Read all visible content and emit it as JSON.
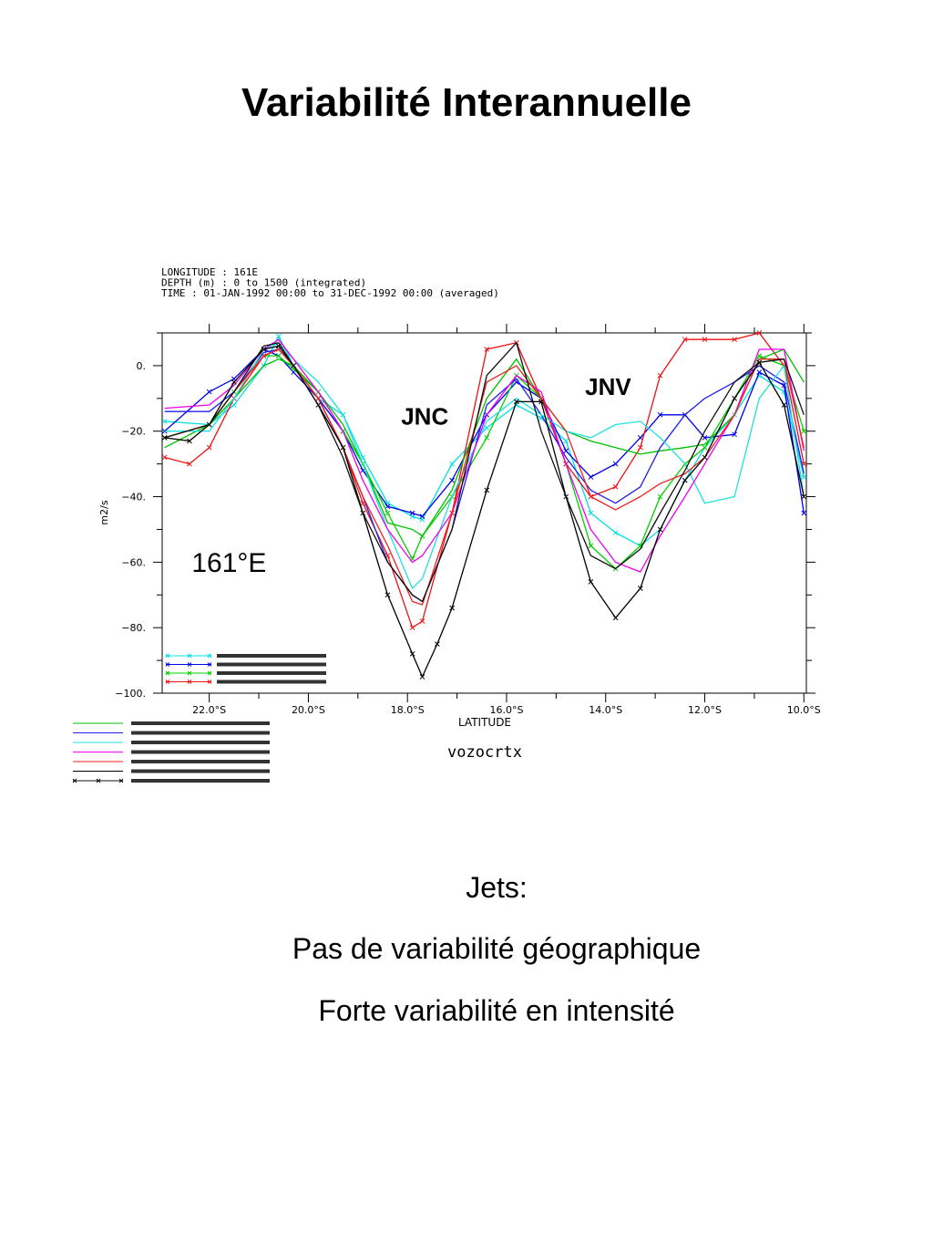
{
  "slide": {
    "title": "Variabilité Interannuelle",
    "caption_lines": [
      "Jets:",
      "Pas de variabilité géographique",
      "Forte variabilité en intensité"
    ]
  },
  "chart_data": {
    "type": "line",
    "header_lines": [
      "LONGITUDE : 161E",
      "DEPTH (m) : 0 to 1500 (integrated)",
      "TIME : 01-JAN-1992 00:00 to 31-DEC-1992 00:00 (averaged)"
    ],
    "xlabel": "LATITUDE",
    "ylabel": "m2/s",
    "variable": "vozocrtx",
    "x_reversed_scale": true,
    "xlim": [
      22.95,
      9.95
    ],
    "ylim": [
      -100,
      10
    ],
    "xticks": [
      22,
      20,
      18,
      16,
      14,
      12,
      10
    ],
    "xtick_labels": [
      "22.0°S",
      "20.0°S",
      "18.0°S",
      "16.0°S",
      "14.0°S",
      "12.0°S",
      "10.0°S"
    ],
    "yticks": [
      0,
      -20,
      -40,
      -60,
      -80,
      -100
    ],
    "ytick_labels": [
      "0.",
      "−20.",
      "−40.",
      "−60.",
      "−80.",
      "−100."
    ],
    "grid": false,
    "annotations": [
      {
        "text": "JNC",
        "x": 17.65,
        "y": -18
      },
      {
        "text": "JNV",
        "x": 13.95,
        "y": -9
      },
      {
        "text": "161°E",
        "x": 21.6,
        "y": -63
      }
    ],
    "legend_placement": "lower-left",
    "series": [
      {
        "color": "#00e0e0",
        "marker": "x",
        "x": [
          22.9,
          22.0,
          21.5,
          20.9,
          20.6,
          20.3,
          19.8,
          19.3,
          18.9,
          18.4,
          17.9,
          17.7,
          17.1,
          16.4,
          15.8,
          15.3,
          14.8,
          14.3,
          13.8,
          13.3,
          12.9,
          12.4,
          12.0,
          11.4,
          10.9,
          10.4,
          10.0
        ],
        "y": [
          -17,
          -18,
          -12,
          0,
          9,
          0,
          -10,
          -15,
          -28,
          -42,
          -46,
          -47,
          -30,
          -19,
          -12,
          -16,
          -23,
          -45,
          -51,
          -55,
          -50,
          -35,
          -25,
          -15,
          -3,
          -8,
          -34
        ]
      },
      {
        "color": "#0000ee",
        "marker": "x",
        "x": [
          22.9,
          22.0,
          21.5,
          20.9,
          20.6,
          20.3,
          19.8,
          19.3,
          18.9,
          18.4,
          17.9,
          17.7,
          17.1,
          16.4,
          15.8,
          15.3,
          14.8,
          14.3,
          13.8,
          13.3,
          12.9,
          12.4,
          12.0,
          11.4,
          10.9,
          10.4,
          10.0
        ],
        "y": [
          -20,
          -8,
          -4,
          5,
          3,
          -2,
          -10,
          -20,
          -32,
          -43,
          -45,
          -46,
          -35,
          -15,
          -5,
          -10,
          -26,
          -34,
          -30,
          -22,
          -15,
          -15,
          -22,
          -21,
          -2,
          -6,
          -45
        ]
      },
      {
        "color": "#00d000",
        "marker": "x",
        "x": [
          22.9,
          22.0,
          21.5,
          20.9,
          20.6,
          20.3,
          19.8,
          19.3,
          18.9,
          18.4,
          17.9,
          17.7,
          17.1,
          16.4,
          15.8,
          15.3,
          14.8,
          14.3,
          13.8,
          13.3,
          12.9,
          12.4,
          12.0,
          11.4,
          10.9,
          10.4,
          10.0
        ],
        "y": [
          -22,
          -18,
          -8,
          3,
          3,
          -1,
          -8,
          -20,
          -30,
          -45,
          -59,
          -52,
          -40,
          -22,
          -3,
          -10,
          -30,
          -55,
          -62,
          -55,
          -40,
          -30,
          -25,
          -10,
          3,
          0,
          -20
        ]
      },
      {
        "color": "#ee1111",
        "marker": "x",
        "x": [
          22.9,
          22.4,
          22.0,
          21.5,
          20.9,
          20.6,
          20.3,
          19.8,
          19.3,
          18.9,
          18.4,
          17.9,
          17.7,
          17.1,
          16.4,
          15.8,
          15.3,
          14.8,
          14.3,
          13.8,
          13.3,
          12.9,
          12.4,
          12.0,
          11.4,
          10.9,
          10.4,
          10.0
        ],
        "y": [
          -28,
          -30,
          -25,
          -10,
          3,
          5,
          0,
          -10,
          -25,
          -42,
          -58,
          -80,
          -78,
          -45,
          5,
          7,
          -10,
          -30,
          -40,
          -37,
          -25,
          -3,
          8,
          8,
          8,
          10,
          0,
          -30
        ]
      },
      {
        "color": "#00c000",
        "marker": "none",
        "x": [
          22.9,
          22.0,
          21.5,
          20.9,
          20.6,
          20.3,
          19.8,
          19.3,
          18.9,
          18.4,
          17.9,
          17.7,
          17.1,
          16.4,
          15.8,
          15.3,
          14.8,
          14.3,
          13.8,
          13.3,
          12.9,
          12.4,
          12.0,
          11.4,
          10.9,
          10.4,
          10.0
        ],
        "y": [
          -25,
          -18,
          -10,
          0,
          2,
          0,
          -8,
          -18,
          -30,
          -48,
          -50,
          -52,
          -38,
          -10,
          2,
          -10,
          -20,
          -23,
          -25,
          -27,
          -26,
          -25,
          -24,
          -15,
          2,
          5,
          -5
        ]
      },
      {
        "color": "#2020ee",
        "marker": "none",
        "x": [
          22.9,
          22.0,
          21.5,
          20.9,
          20.6,
          20.3,
          19.8,
          19.3,
          18.9,
          18.4,
          17.9,
          17.7,
          17.1,
          16.4,
          15.8,
          15.3,
          14.8,
          14.3,
          13.8,
          13.3,
          12.9,
          12.4,
          12.0,
          11.4,
          10.9,
          10.4,
          10.0
        ],
        "y": [
          -14,
          -14,
          -8,
          4,
          5,
          0,
          -10,
          -25,
          -40,
          -60,
          -70,
          -72,
          -50,
          -12,
          -4,
          -15,
          -28,
          -38,
          -42,
          -37,
          -25,
          -15,
          -10,
          -5,
          0,
          -5,
          -33
        ]
      },
      {
        "color": "#20e0e0",
        "marker": "none",
        "x": [
          22.9,
          22.0,
          21.5,
          20.9,
          20.6,
          20.3,
          19.8,
          19.3,
          18.9,
          18.4,
          17.9,
          17.7,
          17.1,
          16.4,
          15.8,
          15.3,
          14.8,
          14.3,
          13.8,
          13.3,
          12.9,
          12.4,
          12.0,
          11.4,
          10.9,
          10.4,
          10.0
        ],
        "y": [
          -20,
          -20,
          -10,
          5,
          7,
          2,
          -5,
          -15,
          -30,
          -50,
          -68,
          -65,
          -40,
          -17,
          -10,
          -15,
          -20,
          -22,
          -18,
          -17,
          -22,
          -30,
          -42,
          -40,
          -10,
          0,
          -40
        ]
      },
      {
        "color": "#ee00ee",
        "marker": "none",
        "x": [
          22.9,
          22.0,
          21.5,
          20.9,
          20.6,
          20.3,
          19.8,
          19.3,
          18.9,
          18.4,
          17.9,
          17.7,
          17.1,
          16.4,
          15.8,
          15.3,
          14.8,
          14.3,
          13.8,
          13.3,
          12.9,
          12.4,
          12.0,
          11.4,
          10.9,
          10.4,
          10.0
        ],
        "y": [
          -13,
          -12,
          -6,
          5,
          8,
          2,
          -8,
          -20,
          -35,
          -50,
          -60,
          -58,
          -45,
          -15,
          -3,
          -8,
          -30,
          -50,
          -60,
          -63,
          -52,
          -40,
          -30,
          -15,
          5,
          5,
          -26
        ]
      },
      {
        "color": "#ee2222",
        "marker": "none",
        "x": [
          22.9,
          22.0,
          21.5,
          20.9,
          20.6,
          20.3,
          19.8,
          19.3,
          18.9,
          18.4,
          17.9,
          17.7,
          17.1,
          16.4,
          15.8,
          15.3,
          14.8,
          14.3,
          13.8,
          13.3,
          12.9,
          12.4,
          12.0,
          11.4,
          10.9,
          10.4,
          10.0
        ],
        "y": [
          -22,
          -18,
          -8,
          3,
          5,
          0,
          -10,
          -25,
          -40,
          -55,
          -72,
          -73,
          -45,
          -5,
          0,
          -10,
          -20,
          -40,
          -44,
          -40,
          -36,
          -33,
          -28,
          -15,
          2,
          2,
          -25
        ]
      },
      {
        "color": "#000000",
        "marker": "x",
        "x": [
          22.9,
          22.4,
          22.0,
          21.5,
          20.9,
          20.6,
          20.3,
          19.8,
          19.3,
          18.9,
          18.4,
          17.9,
          17.7,
          17.4,
          17.1,
          16.4,
          15.8,
          15.3,
          14.8,
          14.3,
          13.8,
          13.3,
          12.9,
          12.4,
          12.0,
          11.4,
          10.9,
          10.4,
          10.0
        ],
        "y": [
          -22,
          -23,
          -18,
          -5,
          5,
          6,
          0,
          -12,
          -25,
          -45,
          -70,
          -88,
          -95,
          -85,
          -74,
          -38,
          -11,
          -11,
          -40,
          -66,
          -77,
          -68,
          -50,
          -35,
          -28,
          -10,
          1,
          -12,
          -40
        ]
      },
      {
        "color": "#101010",
        "marker": "none",
        "x": [
          22.9,
          22.0,
          21.5,
          20.9,
          20.6,
          20.3,
          19.8,
          19.3,
          18.9,
          18.4,
          17.9,
          17.7,
          17.1,
          16.4,
          15.8,
          15.3,
          14.8,
          14.3,
          13.8,
          13.3,
          12.9,
          12.4,
          12.0,
          11.4,
          10.9,
          10.4,
          10.0
        ],
        "y": [
          -22,
          -18,
          -8,
          6,
          7,
          0,
          -12,
          -28,
          -45,
          -60,
          -70,
          -72,
          -50,
          -3,
          7,
          -20,
          -40,
          -58,
          -62,
          -56,
          -45,
          -32,
          -20,
          -5,
          1,
          2,
          -15
        ]
      }
    ]
  }
}
